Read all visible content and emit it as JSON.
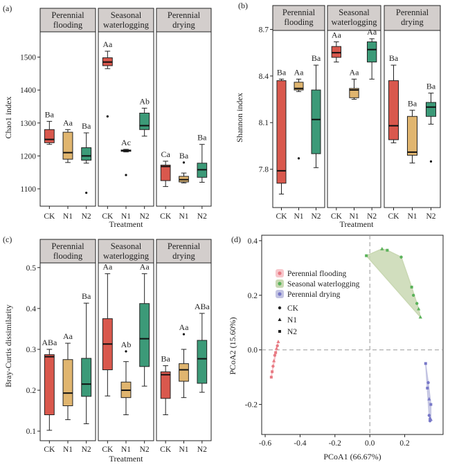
{
  "figure": {
    "treatment_labels": [
      "CK",
      "N1",
      "N2"
    ],
    "treatment_colors": [
      "#d9584d",
      "#e0b56f",
      "#3c9a78"
    ],
    "facet_strip_color": "#d3cecc",
    "facets": [
      {
        "line1": "Perennial",
        "line2": "flooding"
      },
      {
        "line1": "Seasonal",
        "line2": "waterlogging"
      },
      {
        "line1": "Perennial",
        "line2": "drying"
      }
    ]
  },
  "chart_data": [
    {
      "id": "a",
      "panel_tag": "(a)",
      "type": "boxplot",
      "xlabel": "Treatment",
      "ylabel": "Chao1 index",
      "ylim": [
        1060,
        1560
      ],
      "yticks": [
        1100,
        1200,
        1300,
        1400,
        1500
      ],
      "ytick_labels": [
        "1100",
        "1200",
        "1300",
        "1400",
        "1500"
      ],
      "groups": [
        {
          "facet": "Perennial flooding",
          "boxes": [
            {
              "treatment": "CK",
              "whisker_low": 1235,
              "q1": 1240,
              "median": 1250,
              "q3": 1280,
              "whisker_high": 1305,
              "outliers": [],
              "label": "Ba"
            },
            {
              "treatment": "N1",
              "whisker_low": 1180,
              "q1": 1190,
              "median": 1210,
              "q3": 1272,
              "whisker_high": 1280,
              "outliers": [],
              "label": "Aa"
            },
            {
              "treatment": "N2",
              "whisker_low": 1178,
              "q1": 1187,
              "median": 1200,
              "q3": 1225,
              "whisker_high": 1270,
              "outliers": [
                1088
              ],
              "label": "Ba"
            }
          ]
        },
        {
          "facet": "Seasonal waterlogging",
          "boxes": [
            {
              "treatment": "CK",
              "whisker_low": 1465,
              "q1": 1474,
              "median": 1485,
              "q3": 1498,
              "whisker_high": 1518,
              "outliers": [
                1320
              ],
              "label": "Aa"
            },
            {
              "treatment": "N1",
              "whisker_low": 1212,
              "q1": 1214,
              "median": 1216,
              "q3": 1218,
              "whisker_high": 1220,
              "outliers": [
                1142
              ],
              "label": "Ac"
            },
            {
              "treatment": "N2",
              "whisker_low": 1260,
              "q1": 1280,
              "median": 1292,
              "q3": 1330,
              "whisker_high": 1345,
              "outliers": [],
              "label": "Ab"
            }
          ]
        },
        {
          "facet": "Perennial drying",
          "boxes": [
            {
              "treatment": "CK",
              "whisker_low": 1107,
              "q1": 1125,
              "median": 1168,
              "q3": 1172,
              "whisker_high": 1184,
              "outliers": [],
              "label": "Ca"
            },
            {
              "treatment": "N1",
              "whisker_low": 1118,
              "q1": 1121,
              "median": 1128,
              "q3": 1138,
              "whisker_high": 1148,
              "outliers": [
                1180
              ],
              "label": "Ba"
            },
            {
              "treatment": "N2",
              "whisker_low": 1120,
              "q1": 1135,
              "median": 1158,
              "q3": 1178,
              "whisker_high": 1235,
              "outliers": [],
              "label": "Ba"
            }
          ]
        }
      ]
    },
    {
      "id": "b",
      "panel_tag": "(b)",
      "type": "boxplot",
      "xlabel": "Treatment",
      "ylabel": "Shannon index",
      "ylim": [
        7.58,
        8.72
      ],
      "yticks": [
        7.8,
        8.1,
        8.4,
        8.7
      ],
      "ytick_labels": [
        "7.8",
        "8.1",
        "8.4",
        "8.7"
      ],
      "groups": [
        {
          "facet": "Perennial flooding",
          "boxes": [
            {
              "treatment": "CK",
              "whisker_low": 7.64,
              "q1": 7.71,
              "median": 7.79,
              "q3": 8.37,
              "whisker_high": 8.38,
              "outliers": [],
              "label": "Ba"
            },
            {
              "treatment": "N1",
              "whisker_low": 8.3,
              "q1": 8.31,
              "median": 8.32,
              "q3": 8.36,
              "whisker_high": 8.38,
              "outliers": [
                7.87
              ],
              "label": "Aa"
            },
            {
              "treatment": "N2",
              "whisker_low": 7.81,
              "q1": 7.9,
              "median": 8.12,
              "q3": 8.31,
              "whisker_high": 8.47,
              "outliers": [],
              "label": "Ba"
            }
          ]
        },
        {
          "facet": "Seasonal waterlogging",
          "boxes": [
            {
              "treatment": "CK",
              "whisker_low": 8.49,
              "q1": 8.52,
              "median": 8.55,
              "q3": 8.59,
              "whisker_high": 8.62,
              "outliers": [],
              "label": "Aa"
            },
            {
              "treatment": "N1",
              "whisker_low": 8.25,
              "q1": 8.26,
              "median": 8.31,
              "q3": 8.32,
              "whisker_high": 8.38,
              "outliers": [],
              "label": "Aa"
            },
            {
              "treatment": "N2",
              "whisker_low": 8.38,
              "q1": 8.49,
              "median": 8.57,
              "q3": 8.62,
              "whisker_high": 8.64,
              "outliers": [],
              "label": "Aa"
            }
          ]
        },
        {
          "facet": "Perennial drying",
          "boxes": [
            {
              "treatment": "CK",
              "whisker_low": 7.97,
              "q1": 7.99,
              "median": 8.08,
              "q3": 8.37,
              "whisker_high": 8.47,
              "outliers": [],
              "label": "Ba"
            },
            {
              "treatment": "N1",
              "whisker_low": 7.84,
              "q1": 7.89,
              "median": 7.91,
              "q3": 8.14,
              "whisker_high": 8.18,
              "outliers": [],
              "label": "Ba"
            },
            {
              "treatment": "N2",
              "whisker_low": 8.09,
              "q1": 8.14,
              "median": 8.2,
              "q3": 8.23,
              "whisker_high": 8.29,
              "outliers": [
                7.85
              ],
              "label": "Ba"
            }
          ]
        }
      ]
    },
    {
      "id": "c",
      "panel_tag": "(c)",
      "type": "boxplot",
      "xlabel": "Treatment",
      "ylabel": "Bray-Curtis dissimilarity",
      "ylim": [
        0.085,
        0.525
      ],
      "yticks": [
        0.1,
        0.2,
        0.3,
        0.4,
        0.5
      ],
      "ytick_labels": [
        "0.1",
        "0.2",
        "0.3",
        "0.4",
        "0.5"
      ],
      "groups": [
        {
          "facet": "Perennial flooding",
          "boxes": [
            {
              "treatment": "CK",
              "whisker_low": 0.102,
              "q1": 0.14,
              "median": 0.282,
              "q3": 0.287,
              "whisker_high": 0.3,
              "outliers": [],
              "label": "ABa"
            },
            {
              "treatment": "N1",
              "whisker_low": 0.128,
              "q1": 0.162,
              "median": 0.193,
              "q3": 0.275,
              "whisker_high": 0.315,
              "outliers": [],
              "label": "Aa"
            },
            {
              "treatment": "N2",
              "whisker_low": 0.118,
              "q1": 0.185,
              "median": 0.215,
              "q3": 0.278,
              "whisker_high": 0.413,
              "outliers": [],
              "label": "Ba"
            }
          ]
        },
        {
          "facet": "Seasonal waterlogging",
          "boxes": [
            {
              "treatment": "CK",
              "whisker_low": 0.186,
              "q1": 0.25,
              "median": 0.313,
              "q3": 0.375,
              "whisker_high": 0.485,
              "outliers": [],
              "label": "Aa"
            },
            {
              "treatment": "N1",
              "whisker_low": 0.14,
              "q1": 0.182,
              "median": 0.2,
              "q3": 0.22,
              "whisker_high": 0.27,
              "outliers": [
                0.295
              ],
              "label": "Ab"
            },
            {
              "treatment": "N2",
              "whisker_low": 0.21,
              "q1": 0.258,
              "median": 0.326,
              "q3": 0.412,
              "whisker_high": 0.485,
              "outliers": [],
              "label": "Aa"
            }
          ]
        },
        {
          "facet": "Perennial drying",
          "boxes": [
            {
              "treatment": "CK",
              "whisker_low": 0.14,
              "q1": 0.18,
              "median": 0.238,
              "q3": 0.245,
              "whisker_high": 0.26,
              "outliers": [],
              "label": "Ba"
            },
            {
              "treatment": "N1",
              "whisker_low": 0.182,
              "q1": 0.222,
              "median": 0.25,
              "q3": 0.265,
              "whisker_high": 0.3,
              "outliers": [
                0.337
              ],
              "label": "Aa"
            },
            {
              "treatment": "N2",
              "whisker_low": 0.195,
              "q1": 0.217,
              "median": 0.277,
              "q3": 0.322,
              "whisker_high": 0.388,
              "outliers": [],
              "label": "ABa"
            }
          ]
        }
      ]
    },
    {
      "id": "d",
      "panel_tag": "(d)",
      "type": "scatter",
      "xlabel": "PCoA1 (66.67%)",
      "ylabel": "PCoA2 (15.60%)",
      "xlim": [
        -0.62,
        0.42
      ],
      "ylim": [
        -0.31,
        0.42
      ],
      "xticks": [
        -0.6,
        -0.4,
        -0.2,
        0.0,
        0.2
      ],
      "xtick_labels": [
        "-0.6",
        "-0.4",
        "-0.2",
        "0.0",
        "0.2"
      ],
      "yticks": [
        -0.2,
        0.0,
        0.2,
        0.4
      ],
      "ytick_labels": [
        "-0.2",
        "0.0",
        "0.2",
        "0.4"
      ],
      "legend_groups": [
        "Perennial flooding",
        "Seasonal waterlogging",
        "Perennial drying"
      ],
      "legend_shapes": [
        "CK",
        "N1",
        "N2"
      ],
      "groups": [
        {
          "name": "Perennial flooding",
          "point_color": "#e87a83",
          "hull_color": "#f7c7cc",
          "points": [
            {
              "x": -0.53,
              "y": 0.015,
              "shape": "CK"
            },
            {
              "x": -0.545,
              "y": -0.02,
              "shape": "CK"
            },
            {
              "x": -0.555,
              "y": -0.06,
              "shape": "CK"
            },
            {
              "x": -0.525,
              "y": 0.03,
              "shape": "N1"
            },
            {
              "x": -0.535,
              "y": 0.005,
              "shape": "N1"
            },
            {
              "x": -0.55,
              "y": -0.04,
              "shape": "N1"
            },
            {
              "x": -0.54,
              "y": -0.01,
              "shape": "N2"
            },
            {
              "x": -0.56,
              "y": -0.08,
              "shape": "N2"
            },
            {
              "x": -0.565,
              "y": -0.1,
              "shape": "N2"
            }
          ]
        },
        {
          "name": "Seasonal waterlogging",
          "point_color": "#5ab25a",
          "hull_color": "#c9d8b3",
          "points": [
            {
              "x": 0.18,
              "y": 0.34,
              "shape": "CK"
            },
            {
              "x": 0.25,
              "y": 0.2,
              "shape": "CK"
            },
            {
              "x": 0.27,
              "y": 0.17,
              "shape": "CK"
            },
            {
              "x": 0.07,
              "y": 0.37,
              "shape": "N1"
            },
            {
              "x": 0.29,
              "y": 0.12,
              "shape": "N1"
            },
            {
              "x": 0.28,
              "y": 0.15,
              "shape": "N1"
            },
            {
              "x": -0.02,
              "y": 0.345,
              "shape": "N2"
            },
            {
              "x": 0.1,
              "y": 0.365,
              "shape": "N2"
            },
            {
              "x": 0.24,
              "y": 0.23,
              "shape": "N2"
            }
          ]
        },
        {
          "name": "Perennial drying",
          "point_color": "#7878c8",
          "hull_color": "#c3c4e2",
          "points": [
            {
              "x": 0.34,
              "y": -0.24,
              "shape": "CK"
            },
            {
              "x": 0.345,
              "y": -0.26,
              "shape": "CK"
            },
            {
              "x": 0.335,
              "y": -0.12,
              "shape": "CK"
            },
            {
              "x": 0.345,
              "y": -0.25,
              "shape": "N1"
            },
            {
              "x": 0.34,
              "y": -0.18,
              "shape": "N1"
            },
            {
              "x": 0.35,
              "y": -0.255,
              "shape": "N1"
            },
            {
              "x": 0.32,
              "y": -0.05,
              "shape": "N2"
            },
            {
              "x": 0.33,
              "y": -0.14,
              "shape": "N2"
            },
            {
              "x": 0.35,
              "y": -0.2,
              "shape": "N2"
            }
          ]
        }
      ]
    }
  ]
}
